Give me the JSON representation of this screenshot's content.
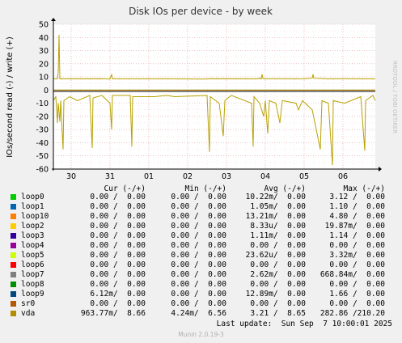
{
  "chart_data": {
    "type": "line",
    "title": "Disk IOs per device - by week",
    "ylabel": "IOs/second read (-) / write (+)",
    "side_label": "RRDTOOL / TOBI OETIKER",
    "ylim": [
      -60,
      50
    ],
    "yticks": [
      50,
      40,
      30,
      20,
      10,
      0,
      -10,
      -20,
      -30,
      -40,
      -50,
      -60
    ],
    "xticks": [
      "30",
      "31",
      "01",
      "02",
      "03",
      "04",
      "05",
      "06"
    ],
    "grid": true,
    "series": [
      {
        "name": "vda",
        "color": "#b8a200",
        "write_points": [
          [
            0,
            8.5
          ],
          [
            5,
            8.5
          ],
          [
            6,
            14
          ],
          [
            7,
            42
          ],
          [
            8,
            8.5
          ],
          [
            60,
            8.6
          ],
          [
            70,
            8.4
          ],
          [
            72,
            12
          ],
          [
            73,
            8.5
          ],
          [
            150,
            8.5
          ],
          [
            185,
            8.4
          ],
          [
            195,
            8.6
          ],
          [
            250,
            8.5
          ],
          [
            252,
            8.6
          ],
          [
            253,
            8.6
          ],
          [
            254,
            9
          ],
          [
            255,
            8.5
          ],
          [
            256,
            9
          ],
          [
            257,
            8.5
          ],
          [
            258,
            12
          ],
          [
            259,
            9
          ],
          [
            260,
            8.5
          ],
          [
            275,
            8.6
          ],
          [
            300,
            8.5
          ],
          [
            310,
            8.6
          ],
          [
            320,
            9
          ],
          [
            321,
            12
          ],
          [
            322,
            9
          ],
          [
            340,
            8.5
          ],
          [
            360,
            8.6
          ],
          [
            380,
            8.5
          ],
          [
            398,
            8.5
          ]
        ],
        "read_points": [
          [
            0,
            -8
          ],
          [
            3,
            -5
          ],
          [
            5,
            -25
          ],
          [
            6,
            -10
          ],
          [
            8,
            -24
          ],
          [
            9,
            -8
          ],
          [
            12,
            -45
          ],
          [
            13,
            -8
          ],
          [
            20,
            -5
          ],
          [
            30,
            -8
          ],
          [
            45,
            -4
          ],
          [
            48,
            -44
          ],
          [
            49,
            -6
          ],
          [
            60,
            -4
          ],
          [
            70,
            -10
          ],
          [
            72,
            -30
          ],
          [
            73,
            -4
          ],
          [
            95,
            -4
          ],
          [
            97,
            -43
          ],
          [
            98,
            -5
          ],
          [
            125,
            -5
          ],
          [
            140,
            -4
          ],
          [
            150,
            -5
          ],
          [
            190,
            -4
          ],
          [
            193,
            -47
          ],
          [
            194,
            -5
          ],
          [
            205,
            -10
          ],
          [
            210,
            -35
          ],
          [
            212,
            -8
          ],
          [
            220,
            -4
          ],
          [
            245,
            -10
          ],
          [
            247,
            -43
          ],
          [
            248,
            -5
          ],
          [
            255,
            -10
          ],
          [
            260,
            -20
          ],
          [
            262,
            -8
          ],
          [
            265,
            -33
          ],
          [
            267,
            -8
          ],
          [
            275,
            -10
          ],
          [
            280,
            -25
          ],
          [
            283,
            -8
          ],
          [
            300,
            -10
          ],
          [
            303,
            -15
          ],
          [
            308,
            -8
          ],
          [
            320,
            -15
          ],
          [
            330,
            -45
          ],
          [
            332,
            -8
          ],
          [
            340,
            -10
          ],
          [
            345,
            -57
          ],
          [
            346,
            -8
          ],
          [
            360,
            -10
          ],
          [
            380,
            -5
          ],
          [
            385,
            -46
          ],
          [
            386,
            -8
          ],
          [
            395,
            -4
          ],
          [
            398,
            -8
          ]
        ]
      },
      {
        "name": "loop0",
        "color": "#00cc00",
        "write_points": [
          [
            0,
            0
          ],
          [
            398,
            0
          ]
        ],
        "read_points": []
      },
      {
        "name": "sr0",
        "color": "#cc7000",
        "write_points": [
          [
            0,
            0
          ],
          [
            398,
            0
          ]
        ],
        "read_points": []
      }
    ]
  },
  "legend": {
    "header": {
      "cur": "Cur (-/+)",
      "min": "Min (-/+)",
      "avg": "Avg (-/+)",
      "max": "Max (-/+)"
    },
    "rows": [
      {
        "name": "loop0",
        "color": "#00cc00",
        "cur": "0.00 /  0.00",
        "min": "0.00 /  0.00",
        "avg": "10.22m/  0.00",
        "max": "3.12 /  0.00"
      },
      {
        "name": "loop1",
        "color": "#0066b3",
        "cur": "0.00 /  0.00",
        "min": "0.00 /  0.00",
        "avg": "1.05m/  0.00",
        "max": "1.10 /  0.00"
      },
      {
        "name": "loop10",
        "color": "#ff8000",
        "cur": "0.00 /  0.00",
        "min": "0.00 /  0.00",
        "avg": "13.21m/  0.00",
        "max": "4.80 /  0.00"
      },
      {
        "name": "loop2",
        "color": "#ffcc00",
        "cur": "0.00 /  0.00",
        "min": "0.00 /  0.00",
        "avg": "8.33u/  0.00",
        "max": "19.87m/  0.00"
      },
      {
        "name": "loop3",
        "color": "#330099",
        "cur": "0.00 /  0.00",
        "min": "0.00 /  0.00",
        "avg": "1.11m/  0.00",
        "max": "1.14 /  0.00"
      },
      {
        "name": "loop4",
        "color": "#990099",
        "cur": "0.00 /  0.00",
        "min": "0.00 /  0.00",
        "avg": "0.00 /  0.00",
        "max": "0.00 /  0.00"
      },
      {
        "name": "loop5",
        "color": "#ccff00",
        "cur": "0.00 /  0.00",
        "min": "0.00 /  0.00",
        "avg": "23.62u/  0.00",
        "max": "3.32m/  0.00"
      },
      {
        "name": "loop6",
        "color": "#ff0000",
        "cur": "0.00 /  0.00",
        "min": "0.00 /  0.00",
        "avg": "0.00 /  0.00",
        "max": "0.00 /  0.00"
      },
      {
        "name": "loop7",
        "color": "#808080",
        "cur": "0.00 /  0.00",
        "min": "0.00 /  0.00",
        "avg": "2.62m/  0.00",
        "max": "668.84m/  0.00"
      },
      {
        "name": "loop8",
        "color": "#008f00",
        "cur": "0.00 /  0.00",
        "min": "0.00 /  0.00",
        "avg": "0.00 /  0.00",
        "max": "0.00 /  0.00"
      },
      {
        "name": "loop9",
        "color": "#00487d",
        "cur": "6.12m/  0.00",
        "min": "0.00 /  0.00",
        "avg": "12.89m/  0.00",
        "max": "1.66 /  0.00"
      },
      {
        "name": "sr0",
        "color": "#b35a00",
        "cur": "0.00 /  0.00",
        "min": "0.00 /  0.00",
        "avg": "0.00 /  0.00",
        "max": "0.00 /  0.00"
      },
      {
        "name": "vda",
        "color": "#b38f00",
        "cur": "963.77m/  8.66",
        "min": "4.24m/  6.56",
        "avg": "3.21 /  8.65",
        "max": "282.86 /210.20"
      }
    ]
  },
  "last_update": "Last update:  Sun Sep  7 10:00:01 2025",
  "footer": "Munin 2.0.19-3"
}
